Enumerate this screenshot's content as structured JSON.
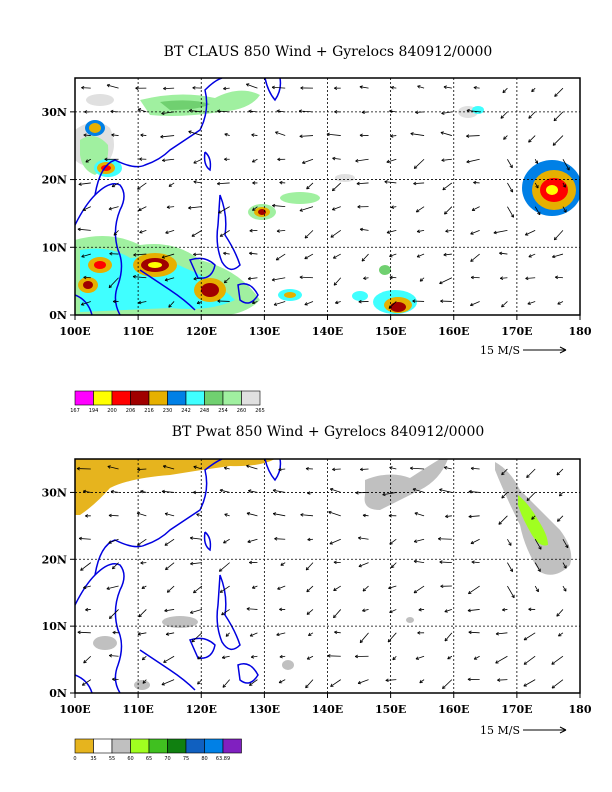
{
  "panels": [
    {
      "title": "BT CLAUS 850 Wind + Gyrelocs 840912/0000",
      "x_ticks": [
        "100E",
        "110E",
        "120E",
        "130E",
        "140E",
        "150E",
        "160E",
        "170E",
        "180"
      ],
      "y_ticks": [
        "0N",
        "10N",
        "20N",
        "30N"
      ],
      "ref_vector": "15 M/S",
      "legend": {
        "colors": [
          "#ff00ff",
          "#ffff00",
          "#ff0000",
          "#a00000",
          "#e6b000",
          "#0080e6",
          "#40ffff",
          "#70d070",
          "#a0f0a0",
          "#e0e0e0"
        ],
        "labels": [
          "167",
          "194",
          "200",
          "206",
          "216",
          "230",
          "242",
          "248",
          "254",
          "260",
          "265"
        ]
      }
    },
    {
      "title": "BT Pwat 850 Wind + Gyrelocs 840912/0000",
      "x_ticks": [
        "100E",
        "110E",
        "120E",
        "130E",
        "140E",
        "150E",
        "160E",
        "170E",
        "180"
      ],
      "y_ticks": [
        "0N",
        "10N",
        "20N",
        "30N"
      ],
      "ref_vector": "15 M/S",
      "legend": {
        "colors": [
          "#e6b41e",
          "#ffffff",
          "#c0c0c0",
          "#a0ff20",
          "#40c020",
          "#108010",
          "#1060c0",
          "#0080e6",
          "#8020c0"
        ],
        "labels": [
          "0",
          "35",
          "55",
          "60",
          "65",
          "70",
          "75",
          "80",
          "63.89"
        ]
      }
    }
  ]
}
